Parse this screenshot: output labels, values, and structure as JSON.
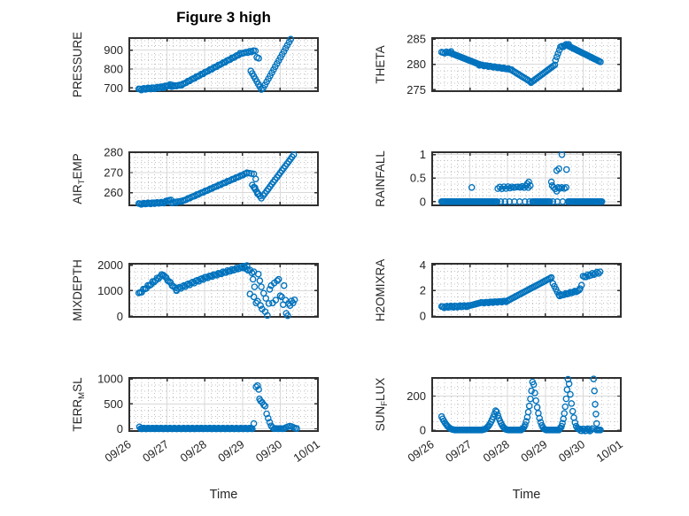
{
  "title": "Figure 3 high",
  "style": {
    "marker_color": "#0072BD",
    "marker_radius": 3.1,
    "marker_stroke_width": 1.35,
    "axis_color": "#2f2f2f",
    "grid_color": "#d9d9d9",
    "minor_grid_color": "#c2c2c2",
    "text_color": "#262626",
    "background": "#ffffff",
    "tick_font_size": 13,
    "ylabel_font_size": 13.5
  },
  "x_axis": {
    "label": "Time",
    "lim": [
      0,
      5
    ],
    "tick_vals": [
      0,
      1,
      2,
      3,
      4,
      5
    ],
    "tick_labels": [
      "09/26",
      "09/27",
      "09/28",
      "09/29",
      "09/30",
      "10/01"
    ],
    "minor_step": 0.16667,
    "tick_label_rotation": -35
  },
  "chart_data": [
    {
      "type": "scatter",
      "name": "PRESSURE",
      "ylabel": {
        "text": "PRESSURE",
        "pre": "PRESSURE",
        "sub": "",
        "post": ""
      },
      "ylim": [
        683,
        964
      ],
      "ytick_vals": [
        700,
        800,
        900
      ],
      "ytick_labels": [
        "700",
        "800",
        "900"
      ],
      "y_minor_step": 25,
      "series": {
        "segments": [
          {
            "x0": 0.25,
            "x1": 0.95,
            "y0": 692,
            "y1": 705,
            "step": 0.035,
            "wiggle": 4
          },
          {
            "x0": 0.95,
            "x1": 1.12,
            "y0": 709,
            "y1": 717,
            "step": 0.04,
            "wiggle": 3
          },
          {
            "x0": 1.12,
            "x1": 1.38,
            "y0": 708,
            "y1": 716,
            "step": 0.045,
            "wiggle": 2
          },
          {
            "x0": 1.42,
            "x1": 2.9,
            "y0": 720,
            "y1": 876,
            "step": 0.045,
            "wiggle": 2
          },
          {
            "x0": 2.94,
            "x1": 3.34,
            "y0": 882,
            "y1": 897,
            "step": 0.05,
            "wiggle": 3
          },
          {
            "x0": 3.22,
            "x1": 3.5,
            "y0": 790,
            "y1": 692,
            "step": 0.038
          },
          {
            "x0": 3.55,
            "x1": 4.28,
            "y0": 700,
            "y1": 958,
            "step": 0.045
          }
        ],
        "points": [
          [
            3.38,
            862
          ],
          [
            3.43,
            857
          ]
        ]
      }
    },
    {
      "type": "scatter",
      "name": "THETA",
      "ylabel": {
        "text": "THETA",
        "pre": "THETA",
        "sub": "",
        "post": ""
      },
      "ylim": [
        274.7,
        285.2
      ],
      "ytick_vals": [
        275,
        280,
        285
      ],
      "ytick_labels": [
        "275",
        "280",
        "285"
      ],
      "y_minor_step": 1.25,
      "series": {
        "segments": [
          {
            "x0": 0.25,
            "x1": 0.5,
            "y0": 282.3,
            "y1": 282.4,
            "step": 0.04,
            "wiggle": 0.15
          },
          {
            "x0": 0.5,
            "x1": 1.25,
            "y0": 282.2,
            "y1": 280.0,
            "step": 0.038
          },
          {
            "x0": 1.25,
            "x1": 2.1,
            "y0": 279.9,
            "y1": 279.0,
            "step": 0.04,
            "wiggle": 0.1
          },
          {
            "x0": 2.1,
            "x1": 2.62,
            "y0": 278.9,
            "y1": 276.5,
            "step": 0.04
          },
          {
            "x0": 2.62,
            "x1": 3.25,
            "y0": 276.4,
            "y1": 279.9,
            "step": 0.04
          },
          {
            "x0": 3.27,
            "x1": 3.37,
            "y0": 280.8,
            "y1": 282.8,
            "step": 0.033
          },
          {
            "x0": 3.4,
            "x1": 3.62,
            "y0": 283.4,
            "y1": 284.0,
            "step": 0.04,
            "wiggle": 0.15
          },
          {
            "x0": 3.62,
            "x1": 4.46,
            "y0": 283.6,
            "y1": 280.5,
            "step": 0.035
          }
        ],
        "points": []
      }
    },
    {
      "type": "scatter",
      "name": "AIR_TEMP",
      "ylabel": {
        "text": "AIR_TEMP",
        "pre": "AIR",
        "sub": "T",
        "post": "EMP"
      },
      "ylim": [
        253.7,
        280.1
      ],
      "ytick_vals": [
        260,
        270,
        280
      ],
      "ytick_labels": [
        "260",
        "270",
        "280"
      ],
      "y_minor_step": 2.5,
      "series": {
        "segments": [
          {
            "x0": 0.25,
            "x1": 0.95,
            "y0": 254.4,
            "y1": 255.1,
            "step": 0.035,
            "wiggle": 0.3
          },
          {
            "x0": 0.97,
            "x1": 1.1,
            "y0": 255.8,
            "y1": 256.4,
            "step": 0.04
          },
          {
            "x0": 1.12,
            "x1": 1.38,
            "y0": 255.0,
            "y1": 255.7,
            "step": 0.045,
            "wiggle": 0.2
          },
          {
            "x0": 1.42,
            "x1": 3.1,
            "y0": 255.9,
            "y1": 269.6,
            "step": 0.045,
            "wiggle": 0.15
          },
          {
            "x0": 3.12,
            "x1": 3.3,
            "y0": 269.9,
            "y1": 269.3,
            "step": 0.06
          },
          {
            "x0": 3.26,
            "x1": 3.5,
            "y0": 263.8,
            "y1": 257.2,
            "step": 0.04
          },
          {
            "x0": 3.55,
            "x1": 4.36,
            "y0": 258.5,
            "y1": 278.9,
            "step": 0.045
          }
        ],
        "points": [
          [
            3.35,
            266.8
          ],
          [
            3.33,
            262.5
          ],
          [
            3.4,
            259.5
          ]
        ]
      }
    },
    {
      "type": "scatter",
      "name": "RAINFALL",
      "ylabel": {
        "text": "RAINFALL",
        "pre": "RAINFALL",
        "sub": "",
        "post": ""
      },
      "ylim": [
        -0.08,
        1.05
      ],
      "ytick_vals": [
        0,
        0.5,
        1
      ],
      "ytick_labels": [
        "0",
        "0.5",
        "1"
      ],
      "y_minor_step": 0.125,
      "series": {
        "segments": [
          {
            "x0": 0.25,
            "x1": 1.72,
            "y0": 0,
            "y1": 0,
            "step": 0.03
          },
          {
            "x0": 2.66,
            "x1": 3.12,
            "y0": 0,
            "y1": 0,
            "step": 0.03
          },
          {
            "x0": 3.6,
            "x1": 4.5,
            "y0": 0,
            "y1": 0,
            "step": 0.03
          },
          {
            "x0": 1.74,
            "x1": 2.6,
            "y0": 0.29,
            "y1": 0.32,
            "step": 0.055,
            "wiggle": 0.02
          }
        ],
        "points": [
          [
            1.05,
            0.3
          ],
          [
            1.82,
            0
          ],
          [
            1.93,
            0
          ],
          [
            2.05,
            0
          ],
          [
            2.18,
            0
          ],
          [
            2.32,
            0
          ],
          [
            2.46,
            0
          ],
          [
            2.58,
            0
          ],
          [
            3.2,
            0
          ],
          [
            3.32,
            0
          ],
          [
            3.46,
            0
          ],
          [
            2.52,
            0.38
          ],
          [
            2.56,
            0.42
          ],
          [
            3.16,
            0.42
          ],
          [
            3.18,
            0.34
          ],
          [
            3.22,
            0.3
          ],
          [
            3.26,
            0.27
          ],
          [
            3.3,
            0.22
          ],
          [
            3.34,
            0.3
          ],
          [
            3.38,
            0.28
          ],
          [
            3.44,
            0.3
          ],
          [
            3.5,
            0.28
          ],
          [
            3.55,
            0.3
          ],
          [
            3.3,
            0.66
          ],
          [
            3.36,
            0.7
          ],
          [
            3.44,
            1.0
          ],
          [
            3.56,
            0.68
          ]
        ]
      }
    },
    {
      "type": "scatter",
      "name": "MIXDEPTH",
      "ylabel": {
        "text": "MIXDEPTH",
        "pre": "MIXDEPTH",
        "sub": "",
        "post": ""
      },
      "ylim": [
        -25,
        2055
      ],
      "ytick_vals": [
        0,
        1000,
        2000
      ],
      "ytick_labels": [
        "0",
        "1000",
        "2000"
      ],
      "y_minor_step": 250,
      "series": {
        "segments": [
          {
            "x0": 0.25,
            "x1": 0.9,
            "y0": 880,
            "y1": 1650,
            "step": 0.04,
            "wiggle": 40
          },
          {
            "x0": 0.9,
            "x1": 1.25,
            "y0": 1620,
            "y1": 1030,
            "step": 0.04,
            "wiggle": 30
          },
          {
            "x0": 1.25,
            "x1": 2.0,
            "y0": 1060,
            "y1": 1500,
            "step": 0.04,
            "wiggle": 40
          },
          {
            "x0": 2.0,
            "x1": 3.0,
            "y0": 1500,
            "y1": 1920,
            "step": 0.04,
            "wiggle": 35
          },
          {
            "x0": 3.0,
            "x1": 3.3,
            "y0": 1930,
            "y1": 1700,
            "step": 0.05,
            "wiggle": 40
          }
        ],
        "points": [
          [
            3.05,
            1960
          ],
          [
            3.12,
            1985
          ],
          [
            3.2,
            870
          ],
          [
            3.28,
            1450
          ],
          [
            3.3,
            760
          ],
          [
            3.32,
            1150
          ],
          [
            3.36,
            520
          ],
          [
            3.4,
            590
          ],
          [
            3.42,
            1650
          ],
          [
            3.46,
            1390
          ],
          [
            3.48,
            420
          ],
          [
            3.5,
            1150
          ],
          [
            3.52,
            280
          ],
          [
            3.56,
            900
          ],
          [
            3.6,
            180
          ],
          [
            3.62,
            700
          ],
          [
            3.66,
            30
          ],
          [
            3.7,
            500
          ],
          [
            3.72,
            1050
          ],
          [
            3.76,
            1200
          ],
          [
            3.8,
            520
          ],
          [
            3.84,
            1300
          ],
          [
            3.88,
            630
          ],
          [
            3.92,
            1390
          ],
          [
            3.96,
            1450
          ],
          [
            4.0,
            800
          ],
          [
            4.04,
            760
          ],
          [
            4.08,
            455
          ],
          [
            4.1,
            1200
          ],
          [
            4.14,
            630
          ],
          [
            4.16,
            115
          ],
          [
            4.2,
            20
          ],
          [
            4.22,
            500
          ],
          [
            4.26,
            420
          ],
          [
            4.3,
            600
          ],
          [
            4.34,
            520
          ],
          [
            4.38,
            640
          ]
        ]
      }
    },
    {
      "type": "scatter",
      "name": "H2OMIXRA",
      "ylabel": {
        "text": "H2OMIXRA",
        "pre": "H2OMIXRA",
        "sub": "",
        "post": ""
      },
      "ylim": [
        -0.07,
        4.1
      ],
      "ytick_vals": [
        0,
        2,
        4
      ],
      "ytick_labels": [
        "0",
        "2",
        "4"
      ],
      "y_minor_step": 0.5,
      "series": {
        "segments": [
          {
            "x0": 0.25,
            "x1": 0.95,
            "y0": 0.7,
            "y1": 0.78,
            "step": 0.035,
            "wiggle": 0.06
          },
          {
            "x0": 0.98,
            "x1": 1.3,
            "y0": 0.8,
            "y1": 1.05,
            "step": 0.04
          },
          {
            "x0": 1.3,
            "x1": 2.0,
            "y0": 1.03,
            "y1": 1.16,
            "step": 0.04,
            "wiggle": 0.04
          },
          {
            "x0": 2.0,
            "x1": 3.15,
            "y0": 1.2,
            "y1": 3.0,
            "step": 0.04
          },
          {
            "x0": 3.2,
            "x1": 3.36,
            "y0": 2.55,
            "y1": 1.65,
            "step": 0.045
          },
          {
            "x0": 3.38,
            "x1": 3.9,
            "y0": 1.6,
            "y1": 2.0,
            "step": 0.04,
            "wiggle": 0.05
          },
          {
            "x0": 4.0,
            "x1": 4.45,
            "y0": 3.05,
            "y1": 3.45,
            "step": 0.04,
            "wiggle": 0.08
          }
        ],
        "points": [
          [
            3.16,
            3.02
          ],
          [
            3.92,
            2.15
          ],
          [
            3.96,
            2.42
          ]
        ]
      }
    },
    {
      "type": "scatter",
      "name": "TERR_MSL",
      "ylabel": {
        "text": "TERR_MSL",
        "pre": "TERR",
        "sub": "M",
        "post": "SL"
      },
      "ylim": [
        -45,
        1020
      ],
      "ytick_vals": [
        0,
        500,
        1000
      ],
      "ytick_labels": [
        "0",
        "500",
        "1000"
      ],
      "y_minor_step": 125,
      "series": {
        "segments": [
          {
            "x0": 0.3,
            "x1": 3.26,
            "y0": 6,
            "y1": 6,
            "step": 0.03,
            "wiggle": 9
          },
          {
            "x0": 3.84,
            "x1": 4.1,
            "y0": 4,
            "y1": 4,
            "step": 0.035,
            "wiggle": 4
          }
        ],
        "points": [
          [
            0.27,
            38
          ],
          [
            3.3,
            105
          ],
          [
            3.36,
            840
          ],
          [
            3.4,
            868
          ],
          [
            3.43,
            790
          ],
          [
            3.45,
            600
          ],
          [
            3.48,
            560
          ],
          [
            3.52,
            530
          ],
          [
            3.56,
            482
          ],
          [
            3.6,
            455
          ],
          [
            3.64,
            300
          ],
          [
            3.68,
            210
          ],
          [
            3.72,
            130
          ],
          [
            3.76,
            60
          ],
          [
            3.8,
            25
          ],
          [
            4.15,
            25
          ],
          [
            4.2,
            42
          ],
          [
            4.25,
            52
          ],
          [
            4.3,
            45
          ],
          [
            4.35,
            28
          ],
          [
            4.4,
            12
          ],
          [
            4.44,
            4
          ]
        ]
      }
    },
    {
      "type": "scatter",
      "name": "SUN_FLUX",
      "ylabel": {
        "text": "SUN_FLUX",
        "pre": "SUN",
        "sub": "F",
        "post": "LUX"
      },
      "ylim": [
        -4,
        306
      ],
      "ytick_vals": [
        0,
        200
      ],
      "ytick_labels": [
        "0",
        "200"
      ],
      "y_minor_step": 50,
      "series": {
        "segments": [
          {
            "x0": 0.25,
            "x1": 0.58,
            "y0": 80,
            "y1": 4,
            "step": 0.03,
            "pow": -2
          },
          {
            "x0": 0.6,
            "x1": 1.32,
            "y0": 2,
            "y1": 2,
            "step": 0.03
          },
          {
            "x0": 1.35,
            "x1": 1.68,
            "y0": 5,
            "y1": 115,
            "step": 0.03,
            "pow": 2
          },
          {
            "x0": 1.71,
            "x1": 2.0,
            "y0": 108,
            "y1": 3,
            "step": 0.03,
            "pow": -2
          },
          {
            "x0": 2.02,
            "x1": 2.36,
            "y0": 2,
            "y1": 2,
            "step": 0.03
          },
          {
            "x0": 2.38,
            "x1": 2.66,
            "y0": 8,
            "y1": 282,
            "step": 0.028,
            "pow": 2
          },
          {
            "x0": 2.69,
            "x1": 3.0,
            "y0": 268,
            "y1": 5,
            "step": 0.03,
            "pow": -2
          },
          {
            "x0": 3.02,
            "x1": 3.36,
            "y0": 2,
            "y1": 2,
            "step": 0.03
          },
          {
            "x0": 3.38,
            "x1": 3.6,
            "y0": 10,
            "y1": 298,
            "step": 0.025,
            "pow": 2
          },
          {
            "x0": 3.63,
            "x1": 3.88,
            "y0": 272,
            "y1": 8,
            "step": 0.03,
            "pow": -2
          },
          {
            "x0": 3.9,
            "x1": 4.24,
            "y0": 3,
            "y1": 3,
            "step": 0.03,
            "wiggle": 7
          },
          {
            "x0": 4.36,
            "x1": 4.46,
            "y0": 2,
            "y1": 2,
            "step": 0.03
          }
        ],
        "points": [
          [
            4.28,
            300
          ],
          [
            4.3,
            230
          ],
          [
            4.32,
            152
          ],
          [
            4.34,
            95
          ],
          [
            4.36,
            40
          ]
        ]
      }
    }
  ]
}
